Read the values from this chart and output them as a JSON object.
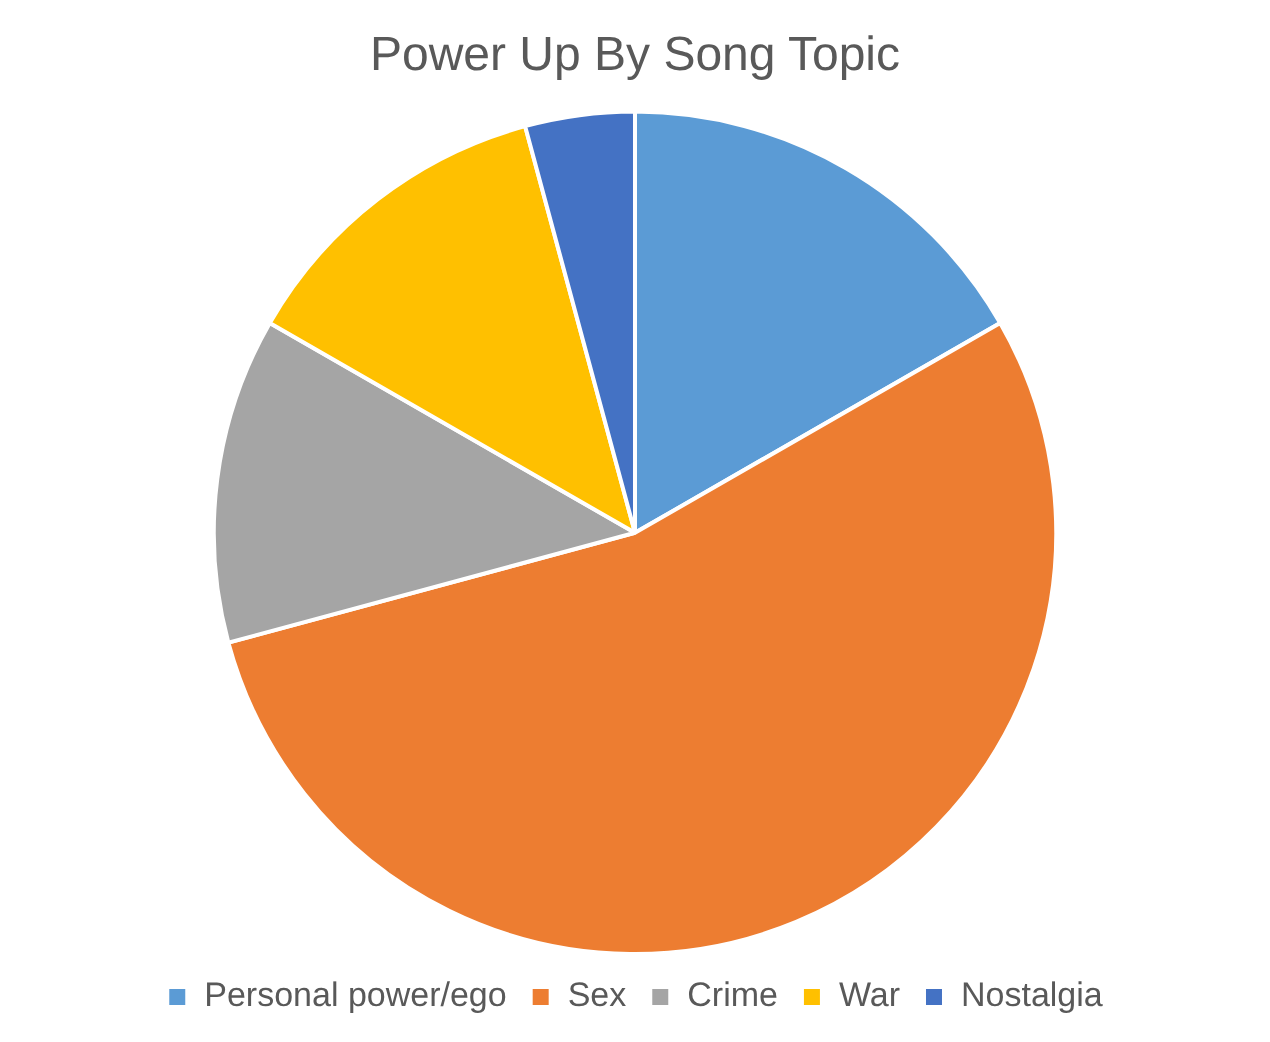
{
  "chart_data": {
    "type": "pie",
    "title": "Power Up By Song Topic",
    "categories": [
      "Personal power/ego",
      "Sex",
      "Crime",
      "War",
      "Nostalgia"
    ],
    "values": [
      16.7,
      54.1,
      12.5,
      12.5,
      4.2
    ],
    "colors": [
      "#5b9bd5",
      "#ed7d31",
      "#a5a5a5",
      "#ffc000",
      "#4472c4"
    ],
    "legend": "bottom"
  }
}
